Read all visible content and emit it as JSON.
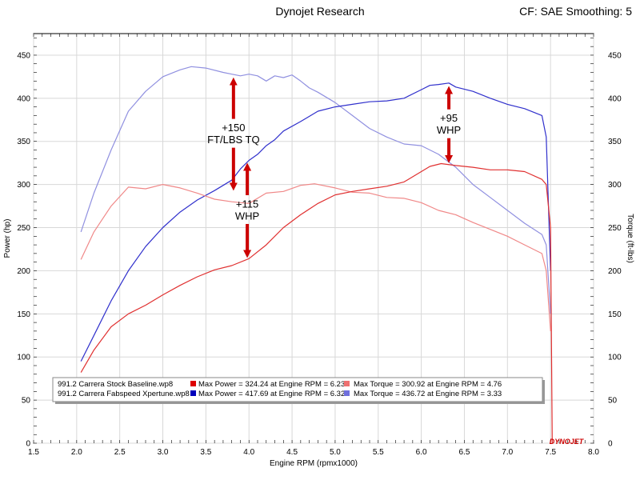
{
  "header": {
    "title": "Dynojet Research",
    "subtitle": "CF: SAE Smoothing: 5"
  },
  "logo_text": "DYNOJET",
  "chart_data": {
    "type": "line",
    "xlabel": "Engine RPM (rpmx1000)",
    "ylabel_left": "Power (hp)",
    "ylabel_right": "Torque (ft-lbs)",
    "xlim": [
      1.5,
      8.0
    ],
    "ylim": [
      0,
      475
    ],
    "x_ticks": [
      "1.5",
      "2.0",
      "2.5",
      "3.0",
      "3.5",
      "4.0",
      "4.5",
      "5.0",
      "5.5",
      "6.0",
      "6.5",
      "7.0",
      "7.5",
      "8.0"
    ],
    "y_ticks": [
      "0",
      "50",
      "100",
      "150",
      "200",
      "250",
      "300",
      "350",
      "400",
      "450"
    ],
    "grid": true,
    "legend_position": "bottom-left",
    "colors": {
      "stock_power": "#e03030",
      "stock_torque": "#f08888",
      "tuned_power": "#3030cc",
      "tuned_torque": "#9090e0",
      "annotation_arrow": "#cc0000",
      "legend_power_stock": "#dd0000",
      "legend_power_tuned": "#0000bb",
      "legend_torque_stock": "#ee7070",
      "legend_torque_tuned": "#7070dd"
    },
    "series": [
      {
        "key": "tuned_torque",
        "x": [
          2.05,
          2.2,
          2.4,
          2.6,
          2.8,
          3.0,
          3.2,
          3.33,
          3.5,
          3.7,
          3.8,
          3.9,
          4.0,
          4.1,
          4.2,
          4.3,
          4.4,
          4.5,
          4.6,
          4.7,
          4.8,
          5.0,
          5.2,
          5.4,
          5.6,
          5.8,
          6.0,
          6.2,
          6.4,
          6.6,
          6.8,
          7.0,
          7.2,
          7.4,
          7.45,
          7.5
        ],
        "y": [
          245,
          290,
          340,
          385,
          408,
          425,
          433,
          436.7,
          435,
          430,
          428,
          426,
          428,
          426,
          420,
          426,
          424,
          427,
          420,
          412,
          407,
          395,
          380,
          365,
          355,
          347,
          345,
          335,
          320,
          300,
          285,
          270,
          255,
          242,
          230,
          150
        ]
      },
      {
        "key": "tuned_power",
        "x": [
          2.05,
          2.2,
          2.4,
          2.6,
          2.8,
          3.0,
          3.2,
          3.4,
          3.6,
          3.8,
          3.9,
          4.0,
          4.1,
          4.2,
          4.3,
          4.4,
          4.6,
          4.8,
          5.0,
          5.2,
          5.4,
          5.6,
          5.8,
          6.0,
          6.1,
          6.2,
          6.32,
          6.4,
          6.6,
          6.8,
          7.0,
          7.2,
          7.4,
          7.45,
          7.5
        ],
        "y": [
          95,
          125,
          165,
          200,
          228,
          250,
          268,
          282,
          293,
          305,
          318,
          328,
          335,
          345,
          352,
          362,
          373,
          385,
          390,
          393,
          396,
          397,
          400,
          410,
          415,
          416,
          417.7,
          413,
          408,
          400,
          393,
          388,
          380,
          355,
          200
        ]
      },
      {
        "key": "stock_torque",
        "x": [
          2.05,
          2.2,
          2.4,
          2.6,
          2.8,
          3.0,
          3.2,
          3.4,
          3.6,
          3.8,
          4.0,
          4.2,
          4.4,
          4.6,
          4.76,
          5.0,
          5.2,
          5.4,
          5.6,
          5.8,
          6.0,
          6.2,
          6.4,
          6.6,
          6.8,
          7.0,
          7.2,
          7.4,
          7.45,
          7.5
        ],
        "y": [
          213,
          245,
          275,
          297,
          295,
          300,
          296,
          290,
          283,
          280,
          278,
          290,
          292,
          299,
          300.9,
          296,
          291,
          290,
          285,
          284,
          279,
          270,
          265,
          256,
          248,
          240,
          230,
          220,
          200,
          130
        ]
      },
      {
        "key": "stock_power",
        "x": [
          2.05,
          2.2,
          2.4,
          2.6,
          2.8,
          3.0,
          3.2,
          3.4,
          3.6,
          3.8,
          4.0,
          4.2,
          4.4,
          4.6,
          4.8,
          5.0,
          5.2,
          5.4,
          5.6,
          5.8,
          6.0,
          6.1,
          6.23,
          6.4,
          6.6,
          6.8,
          7.0,
          7.2,
          7.4,
          7.45,
          7.5,
          7.52
        ],
        "y": [
          82,
          108,
          135,
          150,
          160,
          172,
          183,
          193,
          201,
          206,
          214,
          230,
          250,
          265,
          278,
          288,
          292,
          295,
          298,
          303,
          315,
          321,
          324.2,
          322,
          320,
          317,
          317,
          315,
          306,
          300,
          250,
          0
        ]
      }
    ],
    "annotations": [
      {
        "lines": [
          "+150",
          "FT/LBS TQ"
        ],
        "x": 3.82,
        "arrow_up": [
          3.82,
          427
        ],
        "arrow_down": [
          3.82,
          290
        ]
      },
      {
        "lines": [
          "+115",
          "WHP"
        ],
        "x": 3.98,
        "arrow_up": [
          3.98,
          328
        ],
        "arrow_down": [
          3.98,
          212
        ]
      },
      {
        "lines": [
          "+95",
          "WHP"
        ],
        "x": 6.32,
        "arrow_up": [
          6.32,
          417
        ],
        "arrow_down": [
          6.32,
          322
        ]
      }
    ],
    "legend": {
      "files": [
        "991.2 Carrera Stock Baseline.wp8",
        "991.2 Carrera Fabspeed Xpertune.wp8"
      ],
      "power": [
        "Max Power = 324.24 at Engine RPM = 6.23",
        "Max Power = 417.69 at Engine RPM = 6.32"
      ],
      "torque": [
        "Max Torque = 300.92 at Engine RPM = 4.76",
        "Max Torque = 436.72 at Engine RPM = 3.33"
      ]
    }
  }
}
